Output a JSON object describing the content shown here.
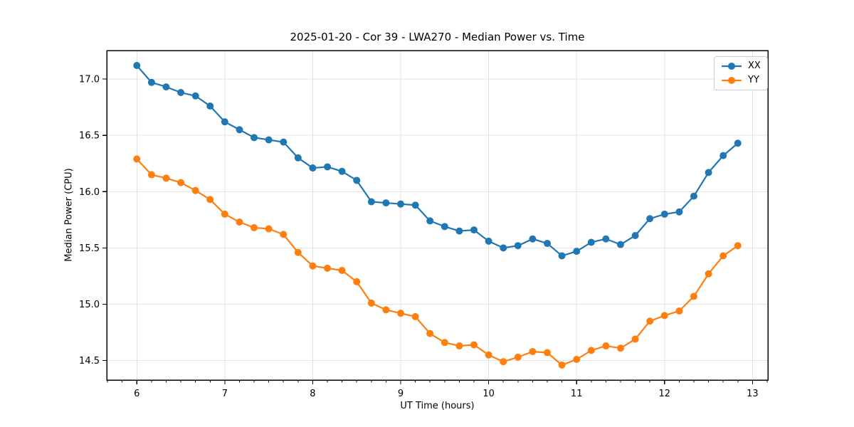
{
  "chart_data": {
    "type": "line",
    "title": "2025-01-20 - Cor 39 - LWA270 - Median Power vs. Time",
    "xlabel": "UT Time (hours)",
    "ylabel": "Median Power (CPU)",
    "xlim": [
      5.658,
      13.175
    ],
    "ylim": [
      14.327,
      17.253
    ],
    "x_ticks": [
      6,
      7,
      8,
      9,
      10,
      11,
      12,
      13
    ],
    "y_ticks": [
      14.5,
      15.0,
      15.5,
      16.0,
      16.5,
      17.0
    ],
    "x_minor_interval": 0.166667,
    "grid": true,
    "grid_color": "#e3e3e3",
    "background": "#ffffff",
    "legend_position": "upper right",
    "x": [
      6.0,
      6.167,
      6.333,
      6.5,
      6.667,
      6.833,
      7.0,
      7.167,
      7.333,
      7.5,
      7.667,
      7.833,
      8.0,
      8.167,
      8.333,
      8.5,
      8.667,
      8.833,
      9.0,
      9.167,
      9.333,
      9.5,
      9.667,
      9.833,
      10.0,
      10.167,
      10.333,
      10.5,
      10.667,
      10.833,
      11.0,
      11.167,
      11.333,
      11.5,
      11.667,
      11.833,
      12.0,
      12.167,
      12.333,
      12.5,
      12.667,
      12.833
    ],
    "series": [
      {
        "name": "XX",
        "color": "#1f77b4",
        "marker": "circle",
        "values": [
          17.12,
          16.97,
          16.93,
          16.88,
          16.85,
          16.76,
          16.62,
          16.55,
          16.48,
          16.46,
          16.44,
          16.3,
          16.21,
          16.22,
          16.18,
          16.1,
          15.91,
          15.9,
          15.89,
          15.88,
          15.74,
          15.69,
          15.65,
          15.66,
          15.56,
          15.5,
          15.52,
          15.58,
          15.54,
          15.43,
          15.47,
          15.55,
          15.58,
          15.53,
          15.61,
          15.76,
          15.8,
          15.82,
          15.96,
          16.17,
          16.32,
          16.43
        ]
      },
      {
        "name": "YY",
        "color": "#ff7f0e",
        "marker": "circle",
        "values": [
          16.29,
          16.15,
          16.12,
          16.08,
          16.01,
          15.93,
          15.8,
          15.73,
          15.68,
          15.67,
          15.62,
          15.46,
          15.34,
          15.32,
          15.3,
          15.2,
          15.01,
          14.95,
          14.92,
          14.89,
          14.74,
          14.66,
          14.63,
          14.64,
          14.55,
          14.49,
          14.53,
          14.58,
          14.57,
          14.46,
          14.51,
          14.59,
          14.63,
          14.61,
          14.69,
          14.85,
          14.9,
          14.94,
          15.07,
          15.27,
          15.43,
          15.52
        ]
      }
    ]
  }
}
